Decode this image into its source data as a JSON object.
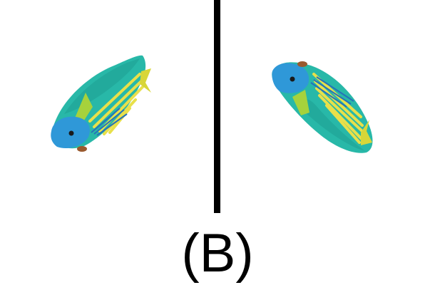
{
  "caption": "(B)",
  "colors": {
    "background": "#ffffff",
    "divider": "#000000",
    "body_teal": "#28b8a8",
    "body_shade": "#1e9e92",
    "head_blue": "#2f98d8",
    "stripe_yellow": "#e8e04a",
    "fin_green": "#a6d23c",
    "tail_yellow": "#d8d638",
    "fin_blue": "#2672b8",
    "lip_brown": "#9a5a2e"
  },
  "icons": {
    "left_fish": "fish-icon",
    "right_fish": "fish-icon"
  }
}
